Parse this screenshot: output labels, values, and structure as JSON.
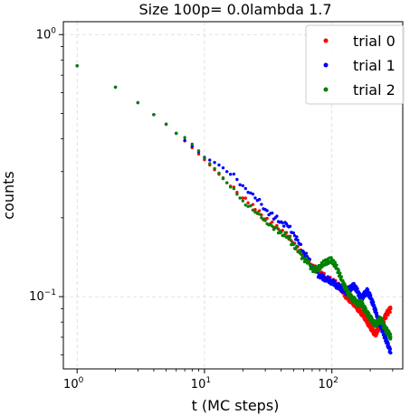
{
  "chart_data": {
    "type": "scatter",
    "title": "Size 100p= 0.0lambda 1.7",
    "xlabel": "t (MC steps)",
    "ylabel": "counts",
    "xscale": "log",
    "yscale": "log",
    "xlim": [
      0.78,
      360
    ],
    "ylim": [
      0.053,
      1.12
    ],
    "grid": true,
    "legend_position": "top-right",
    "x_ticks": [
      {
        "value": 1,
        "base": "10",
        "exp": "0"
      },
      {
        "value": 10,
        "base": "10",
        "exp": "1"
      },
      {
        "value": 100,
        "base": "10",
        "exp": "2"
      }
    ],
    "y_ticks": [
      {
        "value": 0.1,
        "base": "10",
        "exp": "−1"
      },
      {
        "value": 1,
        "base": "10",
        "exp": "0"
      }
    ],
    "series": [
      {
        "name": "trial 0",
        "color": "#ff0000",
        "points": [
          [
            1,
            0.76
          ],
          [
            2,
            0.63
          ],
          [
            3,
            0.55
          ],
          [
            4,
            0.495
          ],
          [
            5,
            0.455
          ],
          [
            6,
            0.42
          ],
          [
            7,
            0.393
          ],
          [
            8,
            0.37
          ],
          [
            9,
            0.35
          ],
          [
            10,
            0.333
          ],
          [
            11,
            0.318
          ],
          [
            12,
            0.305
          ],
          [
            13,
            0.293
          ],
          [
            14,
            0.282
          ],
          [
            15,
            0.272
          ],
          [
            16,
            0.264
          ],
          [
            18,
            0.25
          ],
          [
            20,
            0.238
          ],
          [
            22,
            0.228
          ],
          [
            25,
            0.215
          ],
          [
            28,
            0.205
          ],
          [
            30,
            0.198
          ],
          [
            33,
            0.19
          ],
          [
            36,
            0.184
          ],
          [
            40,
            0.178
          ],
          [
            45,
            0.17
          ],
          [
            50,
            0.16
          ],
          [
            55,
            0.15
          ],
          [
            60,
            0.143
          ],
          [
            65,
            0.138
          ],
          [
            70,
            0.132
          ],
          [
            75,
            0.128
          ],
          [
            80,
            0.124
          ],
          [
            90,
            0.118
          ],
          [
            100,
            0.115
          ],
          [
            110,
            0.112
          ],
          [
            120,
            0.106
          ],
          [
            130,
            0.1
          ],
          [
            140,
            0.097
          ],
          [
            150,
            0.094
          ],
          [
            160,
            0.09
          ],
          [
            170,
            0.087
          ],
          [
            180,
            0.084
          ],
          [
            190,
            0.08
          ],
          [
            200,
            0.077
          ],
          [
            210,
            0.074
          ],
          [
            220,
            0.072
          ],
          [
            230,
            0.075
          ],
          [
            240,
            0.078
          ],
          [
            250,
            0.08
          ],
          [
            260,
            0.083
          ],
          [
            270,
            0.086
          ],
          [
            280,
            0.088
          ],
          [
            290,
            0.09
          ]
        ]
      },
      {
        "name": "trial 1",
        "color": "#0000ff",
        "points": [
          [
            1,
            0.76
          ],
          [
            2,
            0.63
          ],
          [
            3,
            0.55
          ],
          [
            4,
            0.495
          ],
          [
            5,
            0.455
          ],
          [
            6,
            0.42
          ],
          [
            7,
            0.395
          ],
          [
            8,
            0.375
          ],
          [
            9,
            0.357
          ],
          [
            10,
            0.34
          ],
          [
            11,
            0.332
          ],
          [
            12,
            0.325
          ],
          [
            13,
            0.318
          ],
          [
            14,
            0.31
          ],
          [
            15,
            0.3
          ],
          [
            16,
            0.293
          ],
          [
            18,
            0.28
          ],
          [
            20,
            0.265
          ],
          [
            22,
            0.25
          ],
          [
            25,
            0.238
          ],
          [
            28,
            0.225
          ],
          [
            30,
            0.215
          ],
          [
            33,
            0.208
          ],
          [
            36,
            0.2
          ],
          [
            40,
            0.193
          ],
          [
            45,
            0.186
          ],
          [
            50,
            0.175
          ],
          [
            55,
            0.16
          ],
          [
            60,
            0.148
          ],
          [
            65,
            0.14
          ],
          [
            70,
            0.13
          ],
          [
            75,
            0.124
          ],
          [
            80,
            0.12
          ],
          [
            90,
            0.117
          ],
          [
            100,
            0.114
          ],
          [
            110,
            0.11
          ],
          [
            120,
            0.107
          ],
          [
            130,
            0.104
          ],
          [
            140,
            0.108
          ],
          [
            150,
            0.11
          ],
          [
            160,
            0.104
          ],
          [
            170,
            0.098
          ],
          [
            180,
            0.102
          ],
          [
            190,
            0.105
          ],
          [
            200,
            0.1
          ],
          [
            210,
            0.094
          ],
          [
            220,
            0.088
          ],
          [
            230,
            0.082
          ],
          [
            240,
            0.078
          ],
          [
            250,
            0.074
          ],
          [
            260,
            0.07
          ],
          [
            270,
            0.067
          ],
          [
            280,
            0.064
          ],
          [
            290,
            0.061
          ]
        ]
      },
      {
        "name": "trial 2",
        "color": "#008000",
        "points": [
          [
            1,
            0.76
          ],
          [
            2,
            0.63
          ],
          [
            3,
            0.55
          ],
          [
            4,
            0.495
          ],
          [
            5,
            0.455
          ],
          [
            6,
            0.42
          ],
          [
            7,
            0.405
          ],
          [
            8,
            0.382
          ],
          [
            9,
            0.36
          ],
          [
            10,
            0.338
          ],
          [
            11,
            0.322
          ],
          [
            12,
            0.308
          ],
          [
            13,
            0.296
          ],
          [
            14,
            0.284
          ],
          [
            15,
            0.272
          ],
          [
            16,
            0.262
          ],
          [
            18,
            0.246
          ],
          [
            20,
            0.232
          ],
          [
            22,
            0.221
          ],
          [
            25,
            0.21
          ],
          [
            28,
            0.2
          ],
          [
            30,
            0.195
          ],
          [
            33,
            0.188
          ],
          [
            36,
            0.183
          ],
          [
            40,
            0.176
          ],
          [
            45,
            0.168
          ],
          [
            50,
            0.158
          ],
          [
            55,
            0.148
          ],
          [
            60,
            0.14
          ],
          [
            65,
            0.135
          ],
          [
            70,
            0.128
          ],
          [
            75,
            0.126
          ],
          [
            80,
            0.13
          ],
          [
            90,
            0.136
          ],
          [
            100,
            0.138
          ],
          [
            110,
            0.128
          ],
          [
            120,
            0.115
          ],
          [
            130,
            0.106
          ],
          [
            140,
            0.1
          ],
          [
            150,
            0.097
          ],
          [
            160,
            0.094
          ],
          [
            170,
            0.095
          ],
          [
            180,
            0.09
          ],
          [
            190,
            0.086
          ],
          [
            200,
            0.083
          ],
          [
            210,
            0.08
          ],
          [
            220,
            0.078
          ],
          [
            230,
            0.08
          ],
          [
            240,
            0.082
          ],
          [
            250,
            0.079
          ],
          [
            260,
            0.076
          ],
          [
            270,
            0.074
          ],
          [
            280,
            0.072
          ],
          [
            290,
            0.07
          ]
        ]
      }
    ]
  }
}
